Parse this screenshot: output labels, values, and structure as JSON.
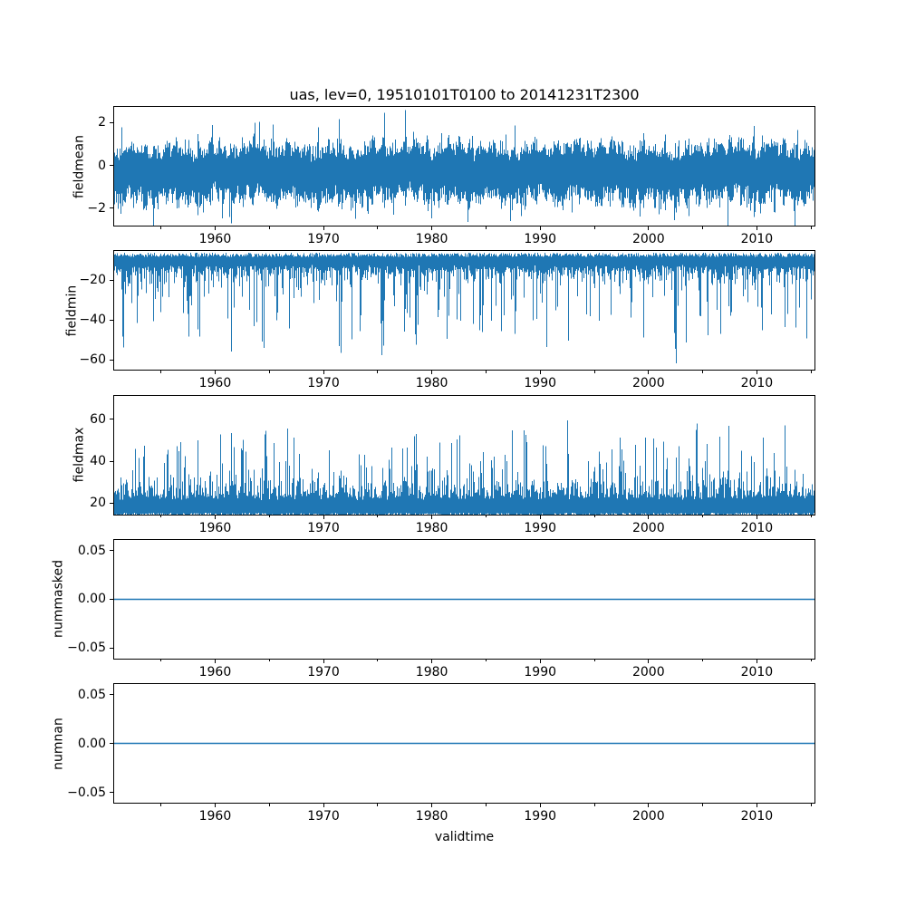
{
  "figure": {
    "title": "uas, lev=0, 19510101T0100 to 20141231T2300",
    "background_color": "#ffffff",
    "text_color": "#000000",
    "line_color": "#1f77b4"
  },
  "chart_data": {
    "type": "line",
    "title": "uas, lev=0, 19510101T0100 to 20141231T2300",
    "xlabel": "validtime",
    "grid": false,
    "legend": "none",
    "x_axis": {
      "lim": [
        1950.6,
        2015.4
      ],
      "major_ticks": [
        {
          "value": 1960,
          "label": "1960"
        },
        {
          "value": 1970,
          "label": "1970"
        },
        {
          "value": 1980,
          "label": "1980"
        },
        {
          "value": 1990,
          "label": "1990"
        },
        {
          "value": 2000,
          "label": "2000"
        },
        {
          "value": 2010,
          "label": "2010"
        }
      ],
      "minor_ticks": [
        1955,
        1965,
        1975,
        1985,
        1995,
        2005,
        2015
      ]
    },
    "subplots": [
      {
        "id": "fieldmean",
        "ylabel": "fieldmean",
        "ylim": [
          -2.85,
          2.78
        ],
        "yticks": [
          {
            "value": 2,
            "label": "2"
          },
          {
            "value": 0,
            "label": "0"
          },
          {
            "value": -2,
            "label": "−2"
          }
        ],
        "series": {
          "kind": "band",
          "seed": 101,
          "center": -0.2,
          "center_wobble": 0.22,
          "up_base": 0.62,
          "up_rand": 0.75,
          "down_base": 0.85,
          "down_rand": 0.85,
          "spike_prob": 0.055,
          "spike_extra_base": 0.55,
          "spike_extra_rand": 0.95,
          "clip": [
            -2.85,
            2.6
          ]
        }
      },
      {
        "id": "fieldmin",
        "ylabel": "fieldmin",
        "ylim": [
          -65.5,
          -5.0
        ],
        "yticks": [
          {
            "value": -20,
            "label": "−20"
          },
          {
            "value": -40,
            "label": "−40"
          },
          {
            "value": -60,
            "label": "−60"
          }
        ],
        "series": {
          "kind": "spikes",
          "seed": 202,
          "direction": -1,
          "edge_base": 6.4,
          "edge_rand": 2.1,
          "core_base": 6.0,
          "core_rand": 15.0,
          "spike_prob_base": 0.06,
          "spike_prob_seasonal": 0.26,
          "spike_abs_base": 27.0,
          "spike_abs_rand": 37.0,
          "clip": [
            -65.0,
            -5.2
          ]
        }
      },
      {
        "id": "fieldmax",
        "ylabel": "fieldmax",
        "ylim": [
          14.2,
          71.8
        ],
        "yticks": [
          {
            "value": 60,
            "label": "60"
          },
          {
            "value": 40,
            "label": "40"
          },
          {
            "value": 20,
            "label": "20"
          }
        ],
        "series": {
          "kind": "spikes",
          "seed": 303,
          "direction": 1,
          "edge_base": 13.4,
          "edge_rand": 2.1,
          "core_base": 8.0,
          "core_rand": 15.0,
          "spike_prob_base": 0.06,
          "spike_prob_seasonal": 0.26,
          "spike_abs_base": 35.0,
          "spike_abs_rand": 29.0,
          "clip": [
            14.4,
            64.8
          ]
        }
      },
      {
        "id": "nummasked",
        "ylabel": "nummasked",
        "ylim": [
          -0.0617,
          0.0617
        ],
        "yticks": [
          {
            "value": 0.05,
            "label": "0.05"
          },
          {
            "value": 0,
            "label": "0.00"
          },
          {
            "value": -0.05,
            "label": "−0.05"
          }
        ],
        "series": {
          "kind": "constant",
          "value": 0
        }
      },
      {
        "id": "numnan",
        "ylabel": "numnan",
        "ylim": [
          -0.0617,
          0.0617
        ],
        "yticks": [
          {
            "value": 0.05,
            "label": "0.05"
          },
          {
            "value": 0,
            "label": "0.00"
          },
          {
            "value": -0.05,
            "label": "−0.05"
          }
        ],
        "series": {
          "kind": "constant",
          "value": 0
        }
      }
    ]
  }
}
